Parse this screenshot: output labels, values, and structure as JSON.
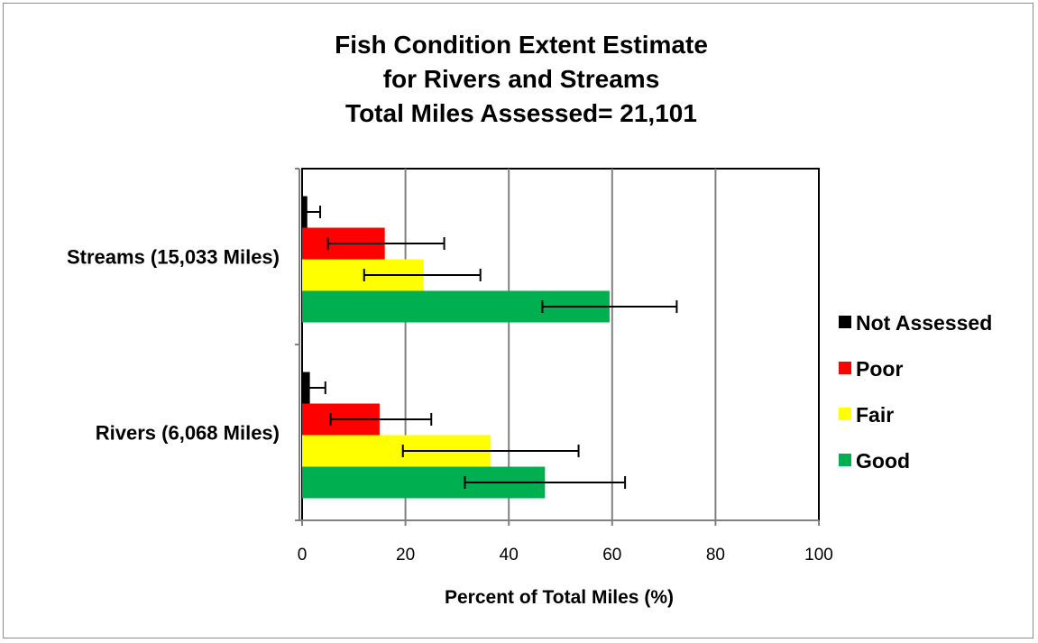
{
  "chart_data": {
    "type": "bar",
    "orientation": "horizontal",
    "title": [
      "Fish Condition Extent Estimate",
      "for Rivers and Streams",
      "Total Miles Assessed= 21,101"
    ],
    "categories": [
      "Streams (15,033 Miles)",
      "Rivers (6,068 Miles)"
    ],
    "series": [
      {
        "name": "Not Assessed",
        "color": "#000000",
        "values": [
          1,
          1.5
        ],
        "error_low": [
          0,
          0
        ],
        "error_high": [
          3.5,
          4.5
        ]
      },
      {
        "name": "Poor",
        "color": "#ff0000",
        "values": [
          16,
          15
        ],
        "error_low": [
          5,
          5.5
        ],
        "error_high": [
          27.5,
          25
        ]
      },
      {
        "name": "Fair",
        "color": "#ffff00",
        "values": [
          23.5,
          36.5
        ],
        "error_low": [
          12,
          19.5
        ],
        "error_high": [
          34.5,
          53.5
        ]
      },
      {
        "name": "Good",
        "color": "#00b050",
        "values": [
          59.5,
          47
        ],
        "error_low": [
          46.5,
          31.5
        ],
        "error_high": [
          72.5,
          62.5
        ]
      }
    ],
    "xlabel": "Percent of Total Miles (%)",
    "ylabel": "",
    "xlim": [
      0,
      100
    ],
    "xticks": [
      "0",
      "20",
      "40",
      "60",
      "80",
      "100"
    ],
    "grid": "vertical",
    "legend": "right"
  }
}
